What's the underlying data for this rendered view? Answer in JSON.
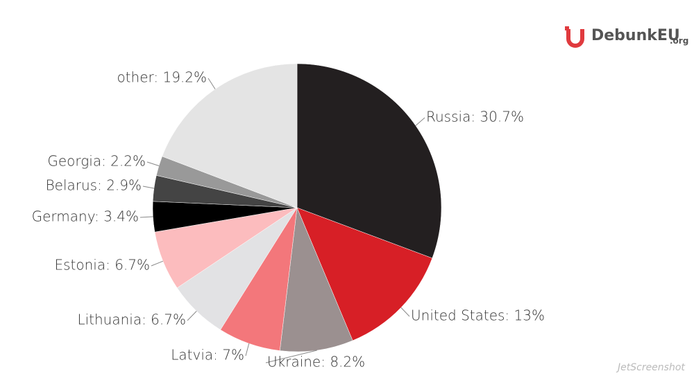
{
  "chart_data": {
    "type": "pie",
    "values": [
      30.7,
      13,
      8.2,
      7,
      6.7,
      6.7,
      3.4,
      2.9,
      2.2,
      19.2
    ],
    "value_labels": [
      "Russia: 30.7%",
      "United States: 13%",
      "Ukraine: 8.2%",
      "Latvia: 7%",
      "Lithuania: 6.7%",
      "Estonia: 6.7%",
      "Germany: 3.4%",
      "Belarus: 2.9%",
      "Georgia: 2.2%",
      "other: 19.2%"
    ],
    "colors": [
      "#231f20",
      "#d71f26",
      "#9b9090",
      "#f3777b",
      "#e2e2e4",
      "#fcbcbe",
      "#000000",
      "#444444",
      "#999999",
      "#e4e4e4"
    ]
  },
  "logo": {
    "name": "DebunkEU",
    "suffix": ".org"
  },
  "watermark": "JetScreenshot"
}
